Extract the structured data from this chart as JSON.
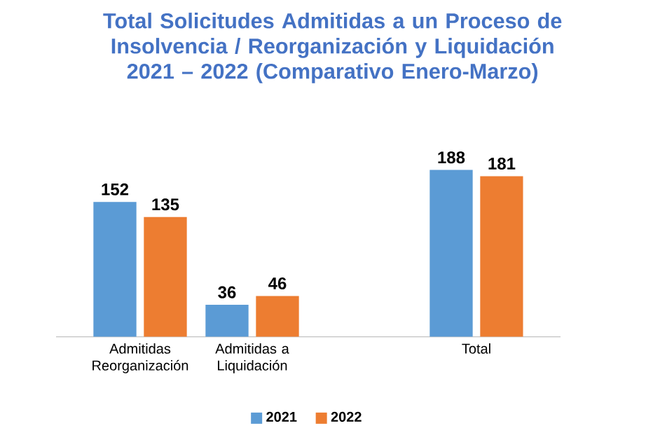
{
  "chart_data": {
    "type": "bar",
    "title": "Total Solicitudes Admitidas a un Proceso de Insolvencia / Reorganización y Liquidación 2021 – 2022 (Comparativo Enero-Marzo)",
    "categories": [
      "Admitidas Reorganización",
      "Admitidas a Liquidación",
      null,
      "Total"
    ],
    "series": [
      {
        "name": "2021",
        "color": "#5b9bd5",
        "values": [
          152,
          36,
          null,
          188
        ]
      },
      {
        "name": "2022",
        "color": "#ed7d31",
        "values": [
          135,
          46,
          null,
          181
        ]
      }
    ],
    "data_labels": true,
    "legend": "bottom"
  }
}
